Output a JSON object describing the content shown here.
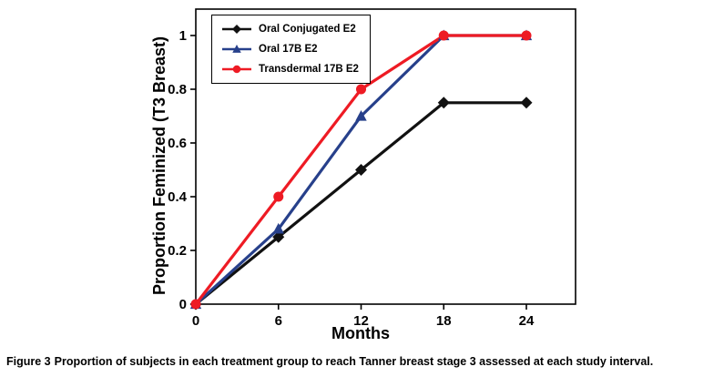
{
  "figure": {
    "caption_label": "Figure 3",
    "caption_text": "Proportion of subjects in each treatment group to reach Tanner breast stage 3 assessed at each study interval."
  },
  "chart_data": {
    "type": "line",
    "title": "",
    "xlabel": "Months",
    "ylabel": "Proportion Feminized (T3 Breast)",
    "x": [
      0,
      6,
      12,
      18,
      24
    ],
    "x_ticks": [
      0,
      6,
      12,
      18,
      24
    ],
    "y_ticks": [
      0,
      0.2,
      0.4,
      0.6,
      0.8,
      1
    ],
    "xlim": [
      0,
      27.5
    ],
    "ylim": [
      0,
      1.1
    ],
    "grid": false,
    "legend_position": "top-left-inside",
    "series": [
      {
        "name": "Oral Conjugated E2",
        "color": "#111111",
        "marker": "diamond",
        "values": [
          0,
          0.25,
          0.5,
          0.75,
          0.75
        ]
      },
      {
        "name": "Oral 17B E2",
        "color": "#27408B",
        "marker": "triangle",
        "values": [
          0,
          0.28,
          0.7,
          1,
          1
        ]
      },
      {
        "name": "Transdermal 17B E2",
        "color": "#EE1B24",
        "marker": "circle",
        "values": [
          0,
          0.4,
          0.8,
          1,
          1
        ]
      }
    ]
  }
}
